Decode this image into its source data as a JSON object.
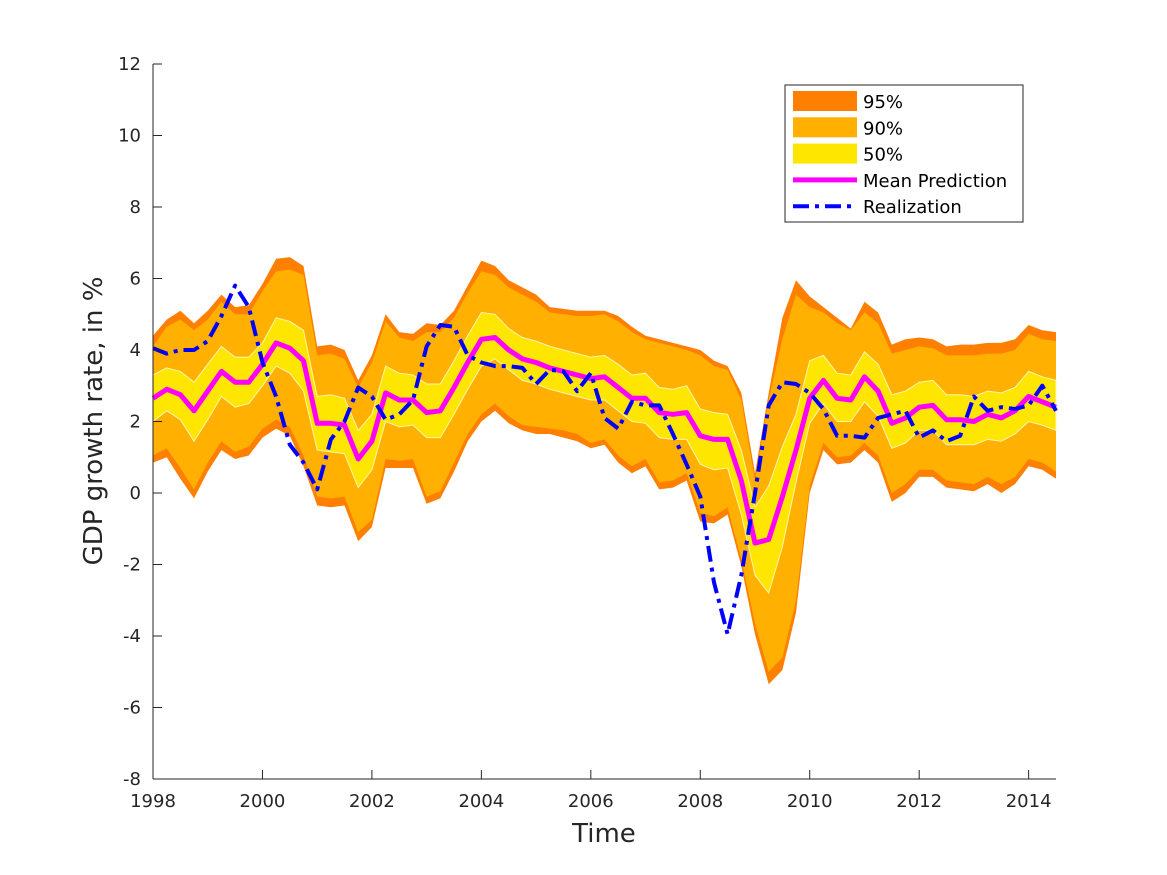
{
  "chart_data": {
    "type": "area",
    "title": "",
    "xlabel": "Time",
    "ylabel": "GDP growth rate, in %",
    "xlim": [
      1998,
      2014.5
    ],
    "ylim": [
      -8,
      12
    ],
    "x_ticks": [
      1998,
      2000,
      2002,
      2004,
      2006,
      2008,
      2010,
      2012,
      2014
    ],
    "y_ticks": [
      -8,
      -6,
      -4,
      -2,
      0,
      2,
      4,
      6,
      8,
      10,
      12
    ],
    "x_tick_labels": [
      "1998",
      "2000",
      "2002",
      "2004",
      "2006",
      "2008",
      "2010",
      "2012",
      "2014"
    ],
    "y_tick_labels": [
      "-8",
      "-6",
      "-4",
      "-2",
      "0",
      "2",
      "4",
      "6",
      "8",
      "10",
      "12"
    ],
    "x": [
      1998.0,
      1998.25,
      1998.5,
      1998.75,
      1999.0,
      1999.25,
      1999.5,
      1999.75,
      2000.0,
      2000.25,
      2000.5,
      2000.75,
      2001.0,
      2001.25,
      2001.5,
      2001.75,
      2002.0,
      2002.25,
      2002.5,
      2002.75,
      2003.0,
      2003.25,
      2003.5,
      2003.75,
      2004.0,
      2004.25,
      2004.5,
      2004.75,
      2005.0,
      2005.25,
      2005.5,
      2005.75,
      2006.0,
      2006.25,
      2006.5,
      2006.75,
      2007.0,
      2007.25,
      2007.5,
      2007.75,
      2008.0,
      2008.25,
      2008.5,
      2008.75,
      2009.0,
      2009.25,
      2009.5,
      2009.75,
      2010.0,
      2010.25,
      2010.5,
      2010.75,
      2011.0,
      2011.25,
      2011.5,
      2011.75,
      2012.0,
      2012.25,
      2012.5,
      2012.75,
      2013.0,
      2013.25,
      2013.5,
      2013.75,
      2014.0,
      2014.25,
      2014.5
    ],
    "mean": [
      2.65,
      2.9,
      2.75,
      2.3,
      2.85,
      3.4,
      3.1,
      3.1,
      3.6,
      4.2,
      4.05,
      3.7,
      1.95,
      1.95,
      1.9,
      0.95,
      1.45,
      2.8,
      2.6,
      2.6,
      2.25,
      2.3,
      2.95,
      3.65,
      4.3,
      4.35,
      4.0,
      3.75,
      3.65,
      3.5,
      3.4,
      3.3,
      3.2,
      3.25,
      2.95,
      2.65,
      2.65,
      2.25,
      2.2,
      2.25,
      1.6,
      1.5,
      1.5,
      0.35,
      -1.4,
      -1.3,
      -0.1,
      1.2,
      2.65,
      3.15,
      2.65,
      2.6,
      3.25,
      2.85,
      1.95,
      2.1,
      2.4,
      2.45,
      2.05,
      2.05,
      2.0,
      2.2,
      2.1,
      2.3,
      2.7,
      2.55,
      2.4
    ],
    "band_50": {
      "lower": [
        2.0,
        2.3,
        2.05,
        1.45,
        2.05,
        2.7,
        2.4,
        2.5,
        3.0,
        3.55,
        3.35,
        2.85,
        1.2,
        1.15,
        1.1,
        0.15,
        0.65,
        2.0,
        1.85,
        1.9,
        1.55,
        1.55,
        2.2,
        2.9,
        3.55,
        3.75,
        3.45,
        3.15,
        3.05,
        2.9,
        2.8,
        2.7,
        2.6,
        2.6,
        2.3,
        2.0,
        1.95,
        1.55,
        1.5,
        1.5,
        0.8,
        0.65,
        0.7,
        -0.6,
        -2.3,
        -2.8,
        -1.5,
        0.3,
        1.95,
        2.5,
        2.0,
        2.0,
        2.55,
        2.15,
        1.25,
        1.4,
        1.75,
        1.75,
        1.35,
        1.35,
        1.35,
        1.5,
        1.45,
        1.65,
        2.0,
        1.9,
        1.75
      ],
      "upper": [
        3.3,
        3.5,
        3.4,
        3.1,
        3.6,
        4.1,
        3.8,
        3.8,
        4.2,
        4.9,
        4.8,
        4.55,
        2.7,
        2.75,
        2.65,
        1.75,
        2.2,
        3.55,
        3.35,
        3.3,
        3.05,
        3.05,
        3.7,
        4.4,
        5.05,
        5.0,
        4.6,
        4.35,
        4.25,
        4.1,
        4.0,
        3.9,
        3.8,
        3.85,
        3.6,
        3.3,
        3.35,
        2.95,
        2.9,
        3.0,
        2.35,
        2.25,
        2.2,
        1.2,
        -0.4,
        0.2,
        1.3,
        2.2,
        3.7,
        3.85,
        3.35,
        3.3,
        3.95,
        3.6,
        2.75,
        2.85,
        3.1,
        3.15,
        2.75,
        2.75,
        2.7,
        2.85,
        2.8,
        2.95,
        3.4,
        3.25,
        3.15
      ]
    },
    "band_90": {
      "lower": [
        1.05,
        1.25,
        0.7,
        0.1,
        0.85,
        1.45,
        1.15,
        1.3,
        1.8,
        2.05,
        1.85,
        1.05,
        -0.1,
        -0.15,
        -0.1,
        -1.1,
        -0.75,
        0.95,
        0.9,
        0.95,
        -0.1,
        0.05,
        0.85,
        1.65,
        2.2,
        2.5,
        2.15,
        1.9,
        1.85,
        1.8,
        1.75,
        1.65,
        1.4,
        1.5,
        1.05,
        0.75,
        0.95,
        0.3,
        0.35,
        0.55,
        -0.55,
        -0.65,
        -0.4,
        -1.85,
        -3.65,
        -5.0,
        -4.6,
        -3.0,
        0.2,
        1.4,
        1.0,
        1.05,
        1.4,
        1.05,
        0.0,
        0.25,
        0.65,
        0.65,
        0.35,
        0.3,
        0.25,
        0.45,
        0.25,
        0.45,
        0.95,
        0.85,
        0.6
      ],
      "upper": [
        4.1,
        4.65,
        4.85,
        4.55,
        4.85,
        5.35,
        5.0,
        5.0,
        5.65,
        6.2,
        6.25,
        6.1,
        3.85,
        3.9,
        3.75,
        2.95,
        3.65,
        4.8,
        4.35,
        4.25,
        4.5,
        4.5,
        4.9,
        5.6,
        6.2,
        6.1,
        5.75,
        5.55,
        5.35,
        5.05,
        5.0,
        4.95,
        4.95,
        5.0,
        4.8,
        4.5,
        4.3,
        4.2,
        4.1,
        4.0,
        3.85,
        3.55,
        3.45,
        2.6,
        0.35,
        2.6,
        4.3,
        5.55,
        5.2,
        5.05,
        4.75,
        4.55,
        5.05,
        4.75,
        3.9,
        4.0,
        4.1,
        4.05,
        3.85,
        3.85,
        3.85,
        3.9,
        3.9,
        4.0,
        4.45,
        4.3,
        4.25
      ]
    },
    "band_95": {
      "lower": [
        0.85,
        1.0,
        0.4,
        -0.15,
        0.6,
        1.2,
        0.95,
        1.05,
        1.55,
        1.8,
        1.6,
        0.75,
        -0.35,
        -0.4,
        -0.35,
        -1.35,
        -0.95,
        0.7,
        0.7,
        0.7,
        -0.3,
        -0.15,
        0.6,
        1.45,
        2.0,
        2.3,
        1.95,
        1.75,
        1.65,
        1.65,
        1.55,
        1.45,
        1.25,
        1.35,
        0.85,
        0.55,
        0.75,
        0.1,
        0.15,
        0.35,
        -0.8,
        -0.85,
        -0.6,
        -2.05,
        -3.95,
        -5.35,
        -4.95,
        -3.35,
        0.0,
        1.2,
        0.8,
        0.85,
        1.2,
        0.85,
        -0.25,
        0.0,
        0.45,
        0.45,
        0.15,
        0.1,
        0.05,
        0.25,
        0.0,
        0.25,
        0.75,
        0.65,
        0.4
      ],
      "upper": [
        4.4,
        4.85,
        5.1,
        4.75,
        5.1,
        5.55,
        5.2,
        5.25,
        5.85,
        6.55,
        6.6,
        6.35,
        4.1,
        4.15,
        4.0,
        3.15,
        3.85,
        5.0,
        4.5,
        4.45,
        4.75,
        4.7,
        5.1,
        5.8,
        6.5,
        6.35,
        5.95,
        5.75,
        5.55,
        5.2,
        5.15,
        5.1,
        5.1,
        5.1,
        4.95,
        4.65,
        4.4,
        4.3,
        4.2,
        4.1,
        4.0,
        3.7,
        3.55,
        2.8,
        0.55,
        2.8,
        4.9,
        5.95,
        5.5,
        5.2,
        4.9,
        4.6,
        5.35,
        5.05,
        4.15,
        4.3,
        4.35,
        4.3,
        4.1,
        4.15,
        4.15,
        4.2,
        4.2,
        4.3,
        4.7,
        4.55,
        4.5
      ]
    },
    "realization": [
      4.05,
      3.9,
      4.0,
      4.0,
      4.25,
      4.95,
      5.8,
      5.2,
      3.65,
      2.7,
      1.35,
      0.85,
      0.1,
      1.5,
      2.0,
      2.95,
      2.7,
      2.05,
      2.2,
      2.6,
      4.1,
      4.7,
      4.65,
      3.85,
      3.65,
      3.55,
      3.55,
      3.5,
      3.05,
      3.45,
      3.4,
      2.85,
      3.35,
      2.1,
      1.8,
      2.55,
      2.45,
      2.45,
      1.65,
      0.8,
      -0.1,
      -2.5,
      -3.95,
      -2.3,
      0.0,
      2.45,
      3.1,
      3.05,
      2.8,
      2.35,
      1.6,
      1.6,
      1.55,
      2.1,
      2.2,
      2.3,
      1.55,
      1.75,
      1.45,
      1.6,
      2.7,
      2.3,
      2.4,
      2.35,
      2.45,
      3.0,
      2.3
    ],
    "series": [
      {
        "name": "95%",
        "color": "#ff8000"
      },
      {
        "name": "90%",
        "color": "#ffb000"
      },
      {
        "name": "50%",
        "color": "#ffe600"
      },
      {
        "name": "Mean Prediction",
        "color": "#ff00ff"
      },
      {
        "name": "Realization",
        "color": "#0000ff"
      }
    ],
    "band_edge_color": "#fff5b0",
    "legend_position": "top-right"
  }
}
